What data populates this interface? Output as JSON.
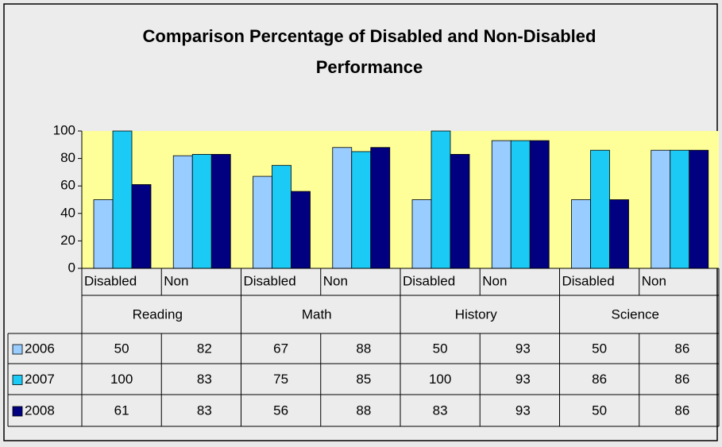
{
  "chart_data": {
    "type": "bar",
    "title": [
      "Comparison  Percentage  of Disabled and Non-Disabled",
      "Performance"
    ],
    "categories": [
      "Disabled",
      "Non",
      "Disabled",
      "Non",
      "Disabled",
      "Non",
      "Disabled",
      "Non"
    ],
    "groups": [
      "Reading",
      "Math",
      "History",
      "Science"
    ],
    "series": [
      {
        "name": "2006",
        "color": "#99ccff",
        "values": [
          50,
          82,
          67,
          88,
          50,
          93,
          50,
          86
        ]
      },
      {
        "name": "2007",
        "color": "#1ccbf5",
        "values": [
          100,
          83,
          75,
          85,
          100,
          93,
          86,
          86
        ]
      },
      {
        "name": "2008",
        "color": "#000080",
        "values": [
          61,
          83,
          56,
          88,
          83,
          93,
          50,
          86
        ]
      }
    ],
    "ylim": [
      0,
      100
    ],
    "yticks": [
      0,
      20,
      40,
      60,
      80,
      100
    ],
    "grid": false,
    "plot_background": "#ffff99"
  }
}
